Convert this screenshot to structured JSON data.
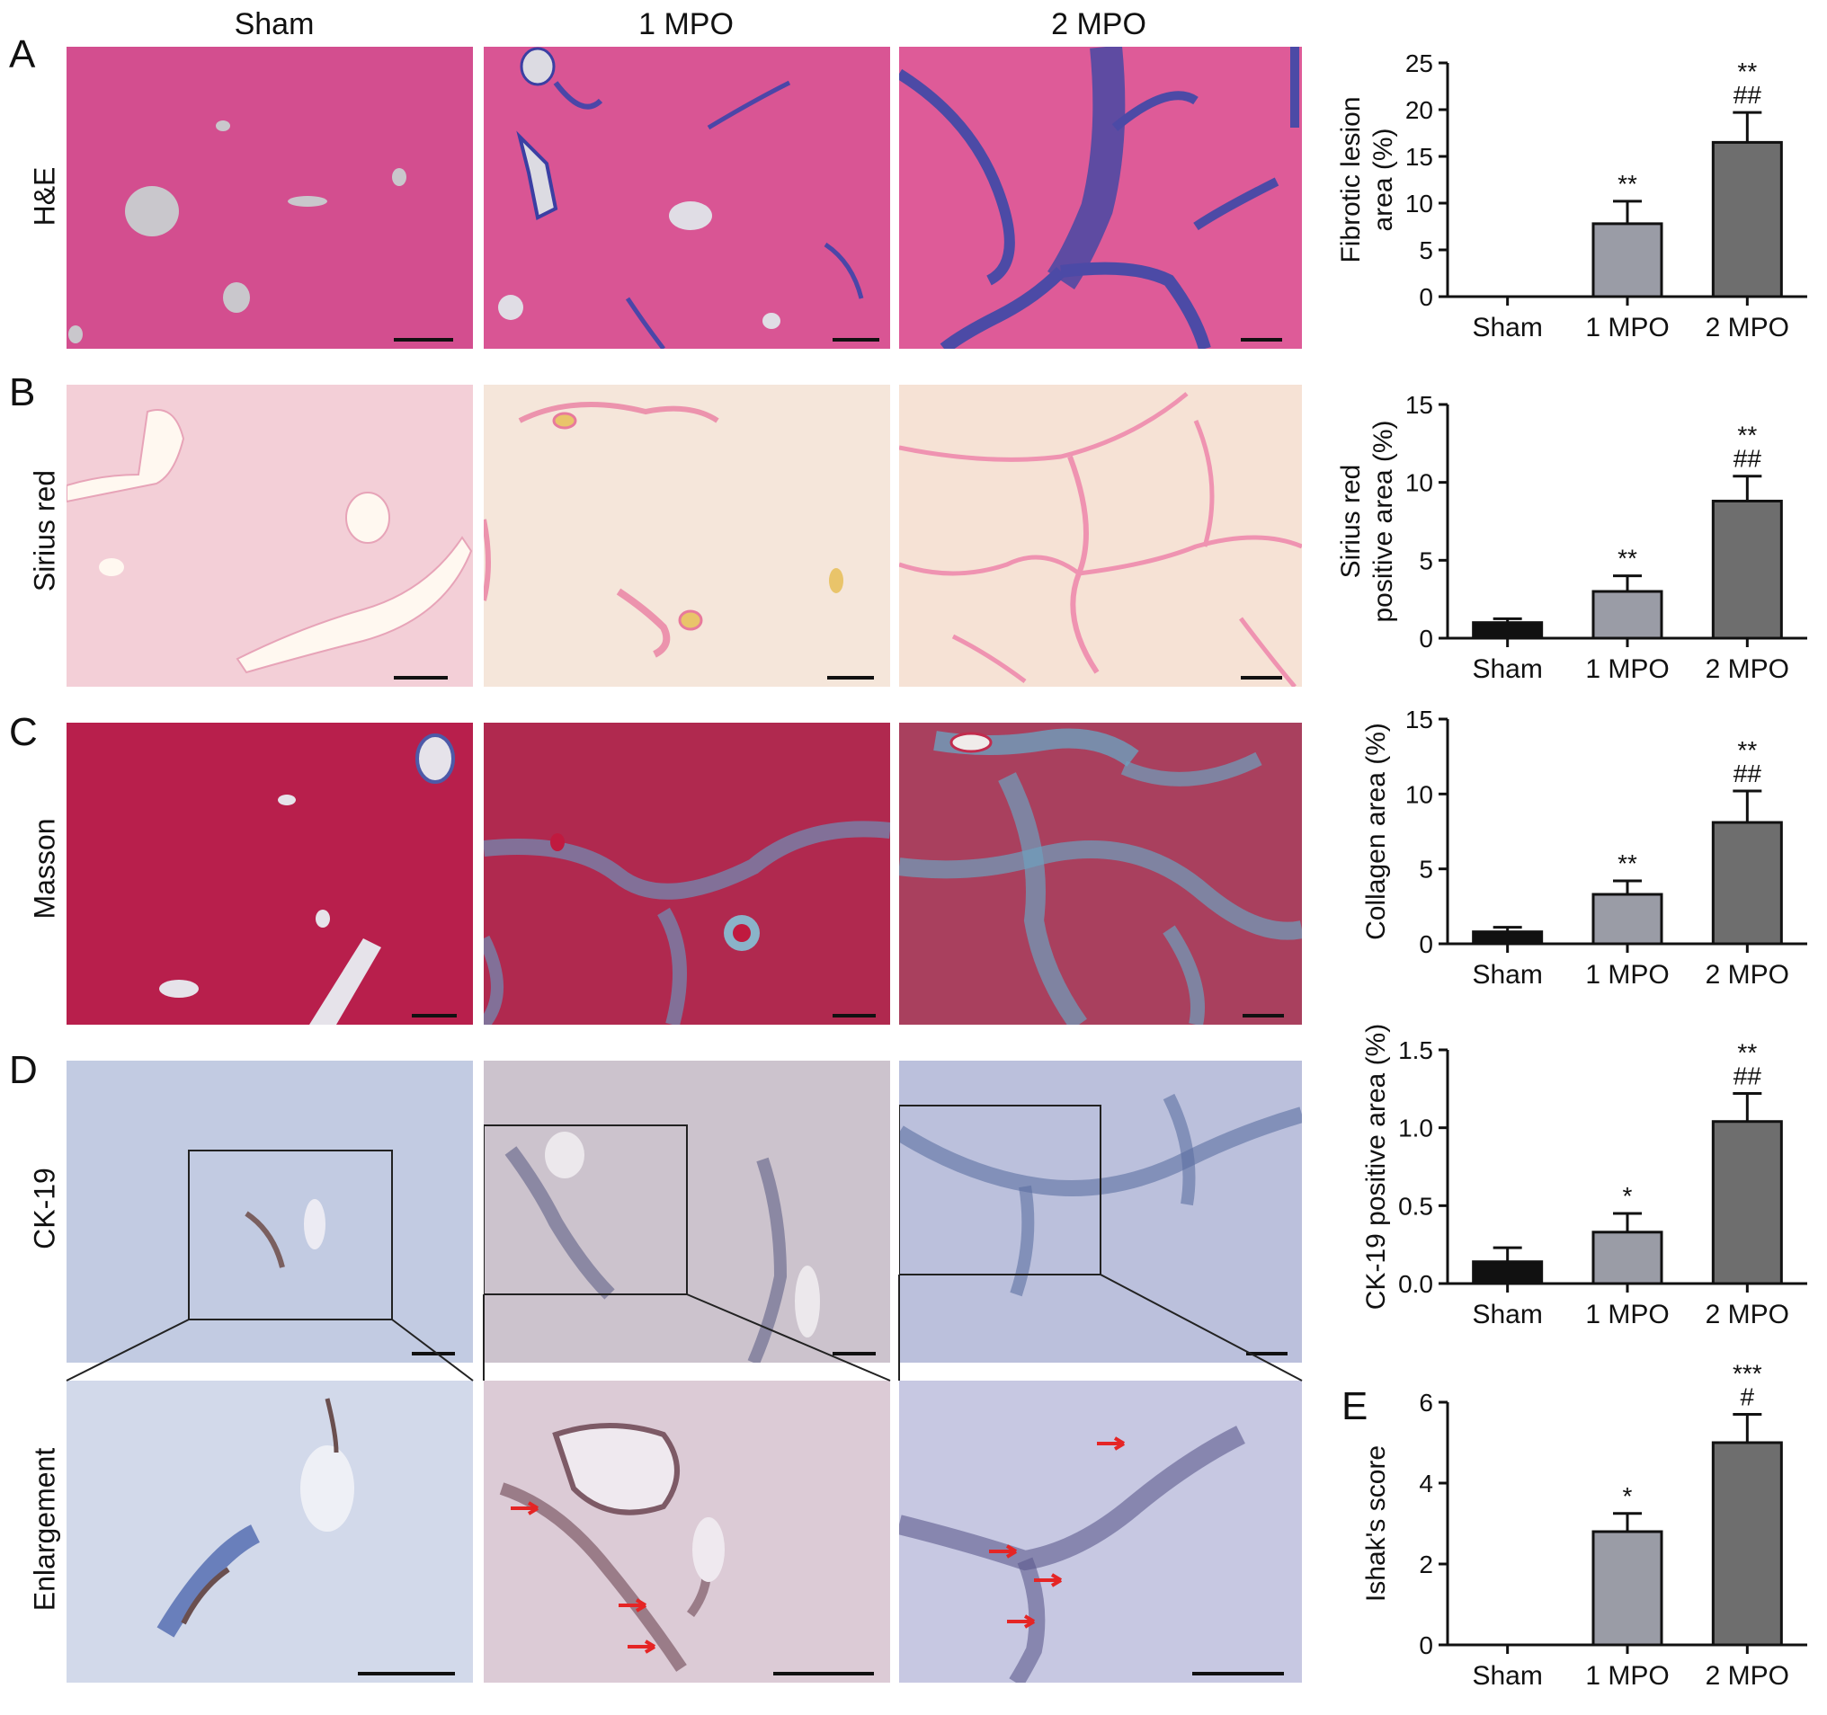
{
  "columns": [
    "Sham",
    "1 MPO",
    "2 MPO"
  ],
  "panel_letters": [
    "A",
    "B",
    "C",
    "D",
    "E"
  ],
  "row_labels": [
    "H&E",
    "Sirius red",
    "Masson",
    "CK-19",
    "Enlargement"
  ],
  "chart_data": [
    {
      "panel": "A",
      "type": "bar",
      "categories": [
        "Sham",
        "1 MPO",
        "2 MPO"
      ],
      "values": [
        0,
        7.8,
        16.5
      ],
      "errors": [
        0,
        2.4,
        3.2
      ],
      "colors": [
        "#111111",
        "#9a9ca6",
        "#6e6e6e"
      ],
      "ylabel_lines": [
        "Fibrotic lesion",
        "area (%)"
      ],
      "ylim": [
        0,
        25
      ],
      "ticks": [
        "0",
        "5",
        "10",
        "15",
        "20",
        "25"
      ],
      "tick_values": [
        0,
        5,
        10,
        15,
        20,
        25
      ],
      "annotations": [
        [],
        [
          "**"
        ],
        [
          "**",
          "##"
        ]
      ]
    },
    {
      "panel": "B",
      "type": "bar",
      "categories": [
        "Sham",
        "1 MPO",
        "2 MPO"
      ],
      "values": [
        1.0,
        3.0,
        8.8
      ],
      "errors": [
        0.25,
        1.0,
        1.6
      ],
      "colors": [
        "#111111",
        "#9a9ca6",
        "#6e6e6e"
      ],
      "ylabel_lines": [
        "Sirius red",
        "positive area (%)"
      ],
      "ylim": [
        0,
        15
      ],
      "ticks": [
        "0",
        "5",
        "10",
        "15"
      ],
      "tick_values": [
        0,
        5,
        10,
        15
      ],
      "annotations": [
        [],
        [
          "**"
        ],
        [
          "**",
          "##"
        ]
      ]
    },
    {
      "panel": "C",
      "type": "bar",
      "categories": [
        "Sham",
        "1 MPO",
        "2 MPO"
      ],
      "values": [
        0.8,
        3.3,
        8.1
      ],
      "errors": [
        0.3,
        0.9,
        2.1
      ],
      "colors": [
        "#111111",
        "#9a9ca6",
        "#6e6e6e"
      ],
      "ylabel_lines": [
        "Collagen area (%)"
      ],
      "ylim": [
        0,
        15
      ],
      "ticks": [
        "0",
        "5",
        "10",
        "15"
      ],
      "tick_values": [
        0,
        5,
        10,
        15
      ],
      "annotations": [
        [],
        [
          "**"
        ],
        [
          "**",
          "##"
        ]
      ]
    },
    {
      "panel": "D",
      "type": "bar",
      "categories": [
        "Sham",
        "1 MPO",
        "2 MPO"
      ],
      "values": [
        0.14,
        0.33,
        1.04
      ],
      "errors": [
        0.09,
        0.12,
        0.18
      ],
      "colors": [
        "#111111",
        "#9a9ca6",
        "#6e6e6e"
      ],
      "ylabel_lines": [
        "CK-19 positive area (%)"
      ],
      "ylim": [
        0,
        1.5
      ],
      "ticks": [
        "0.0",
        "0.5",
        "1.0",
        "1.5"
      ],
      "tick_values": [
        0,
        0.5,
        1.0,
        1.5
      ],
      "annotations": [
        [],
        [
          "*"
        ],
        [
          "**",
          "##"
        ]
      ]
    },
    {
      "panel": "E",
      "type": "bar",
      "categories": [
        "Sham",
        "1 MPO",
        "2 MPO"
      ],
      "values": [
        0,
        2.8,
        5.0
      ],
      "errors": [
        0,
        0.45,
        0.7
      ],
      "colors": [
        "#111111",
        "#9a9ca6",
        "#6e6e6e"
      ],
      "ylabel_lines": [
        "Ishak's score"
      ],
      "ylim": [
        0,
        6
      ],
      "ticks": [
        "0",
        "2",
        "4",
        "6"
      ],
      "tick_values": [
        0,
        2,
        4,
        6
      ],
      "annotations": [
        [],
        [
          "*"
        ],
        [
          "***",
          "#"
        ]
      ]
    }
  ]
}
